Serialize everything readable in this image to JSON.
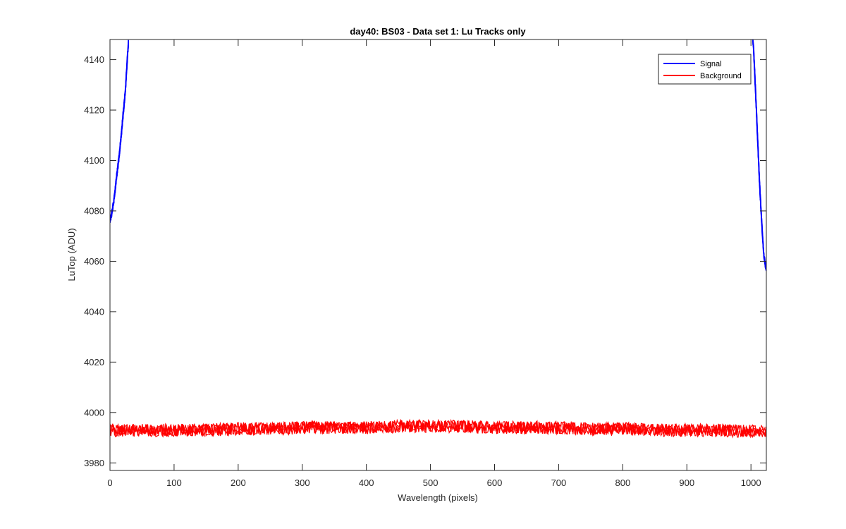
{
  "chart_data": {
    "type": "line",
    "title": "day40: BS03 - Data set 1: Lu Tracks only",
    "xlabel": "Wavelength (pixels)",
    "ylabel": "LuTop (ADU)",
    "xlim": [
      0,
      1024
    ],
    "ylim": [
      3977,
      4148
    ],
    "x_ticks": [
      0,
      100,
      200,
      300,
      400,
      500,
      600,
      700,
      800,
      900,
      1000
    ],
    "y_ticks": [
      3980,
      4000,
      4020,
      4040,
      4060,
      4080,
      4100,
      4120,
      4140
    ],
    "legend_position": "top-right",
    "grid": false,
    "series": [
      {
        "name": "Signal",
        "color": "#0000ff",
        "segments": [
          {
            "x": [
              0,
              2,
              4,
              6,
              8,
              10,
              12,
              14,
              16,
              18,
              20,
              22,
              24,
              26,
              27,
              28,
              29
            ],
            "y": [
              4076,
              4078,
              4081,
              4084,
              4088,
              4093,
              4097,
              4101,
              4106,
              4111,
              4117,
              4122,
              4128,
              4136,
              4140,
              4144,
              4148
            ]
          },
          {
            "x": [
              1003,
              1004,
              1006,
              1008,
              1010,
              1012,
              1014,
              1016,
              1018,
              1020,
              1022,
              1024
            ],
            "y": [
              4148,
              4145,
              4134,
              4123,
              4111,
              4099,
              4088,
              4079,
              4070,
              4063,
              4059,
              4057
            ]
          }
        ]
      },
      {
        "name": "Background",
        "color": "#ff0000",
        "segments": [
          {
            "x": [
              0,
              50,
              100,
              150,
              200,
              250,
              300,
              350,
              400,
              450,
              500,
              550,
              600,
              650,
              700,
              750,
              800,
              850,
              900,
              950,
              1000,
              1024
            ],
            "y": [
              3993,
              3993,
              3993,
              3993,
              3993.5,
              3993.5,
              3994,
              3994,
              3994,
              3994.5,
              3994.5,
              3994.5,
              3994,
              3994,
              3994,
              3993.5,
              3993.5,
              3993,
              3993,
              3993,
              3992.5,
              3992.5
            ],
            "band_halfwidth": 3
          }
        ]
      }
    ]
  },
  "colors": {
    "axes": "#262626",
    "background": "#ffffff",
    "legend_border": "#262626"
  }
}
